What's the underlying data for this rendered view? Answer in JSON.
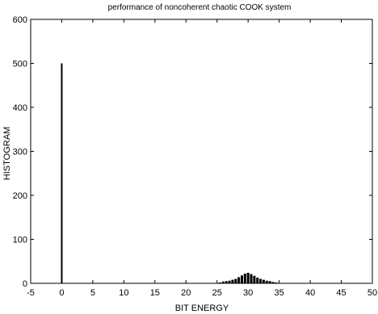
{
  "chart_data": {
    "type": "bar",
    "title": "performance of noncoherent  chaotic COOK system",
    "xlabel": "BIT ENERGY",
    "ylabel": "HISTOGRAM",
    "xlim": [
      -5,
      50
    ],
    "ylim": [
      0,
      600
    ],
    "xticks": [
      -5,
      0,
      5,
      10,
      15,
      20,
      25,
      30,
      35,
      40,
      45,
      50
    ],
    "yticks": [
      0,
      100,
      200,
      300,
      400,
      500,
      600
    ],
    "xtick_labels": [
      "-5",
      "0",
      "5",
      "10",
      "15",
      "20",
      "25",
      "30",
      "35",
      "40",
      "45",
      "50"
    ],
    "ytick_labels": [
      "0",
      "100",
      "200",
      "300",
      "400",
      "500",
      "600"
    ],
    "grid": false,
    "series": [
      {
        "x": [
          0,
          5,
          10,
          13,
          25.5,
          26,
          26.5,
          27,
          27.5,
          28,
          28.5,
          29,
          29.5,
          30,
          30.5,
          31,
          31.5,
          32,
          32.5,
          33,
          33.5,
          34,
          34.5,
          35
        ],
        "values": [
          500,
          1,
          1,
          1,
          2,
          4,
          5,
          6,
          8,
          10,
          14,
          18,
          22,
          24,
          21,
          17,
          13,
          10,
          8,
          6,
          5,
          3,
          2,
          1
        ]
      }
    ]
  }
}
